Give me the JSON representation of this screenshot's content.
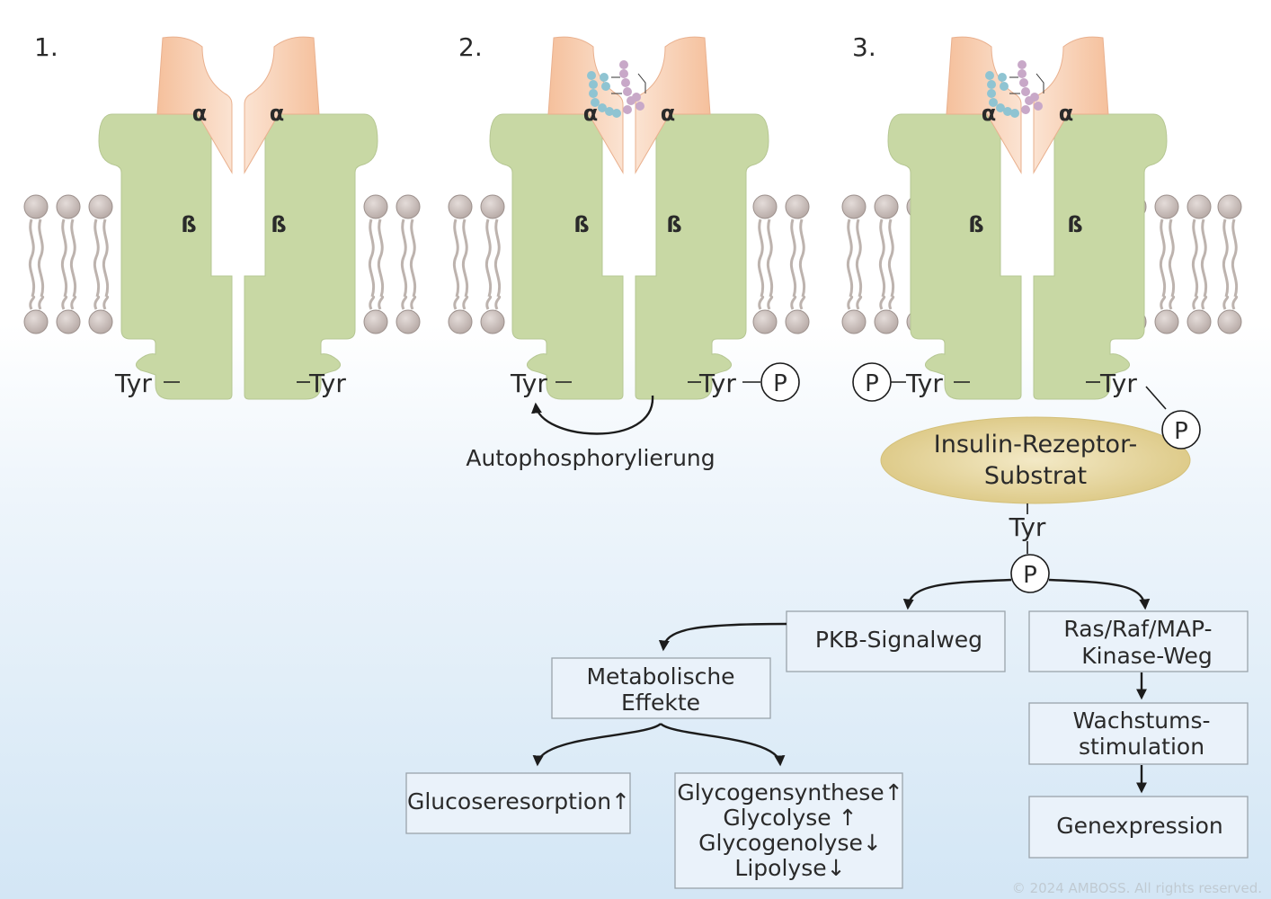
{
  "steps": [
    "1.",
    "2.",
    "3."
  ],
  "subunits": {
    "alpha": "α",
    "beta": "ß"
  },
  "residue": "Tyr",
  "phosphate": "P",
  "autophosphorylation": "Autophosphorylierung",
  "irs": {
    "line1": "Insulin-Rezeptor-",
    "line2": "Substrat"
  },
  "pkb_pathway": "PKB-Signalweg",
  "ras_pathway": {
    "line1": "Ras/Raf/MAP-",
    "line2": "Kinase-Weg"
  },
  "metabolic_effects": {
    "line1": "Metabolische",
    "line2": "Effekte"
  },
  "glucose_resorption": "Glucoseresorption↑",
  "metabolic_list": [
    "Glycogensynthese↑",
    "Glycolyse ↑",
    "Glycogenolyse↓",
    "Lipolyse↓"
  ],
  "growth": {
    "line1": "Wachstums-",
    "line2": "stimulation"
  },
  "gene_expression": "Genexpression",
  "copyright": "© 2024 AMBOSS. All rights reserved.",
  "colors": {
    "alpha_subunit": "#f7c9a8",
    "beta_subunit": "#c8d8a4",
    "lipid_head": "#c4b8b4",
    "irs_ellipse": "#e6d49a",
    "insulin_chain_a": "#8fc4d2",
    "insulin_chain_b": "#c8a8c8",
    "box_fill": "#eaf2fa"
  }
}
